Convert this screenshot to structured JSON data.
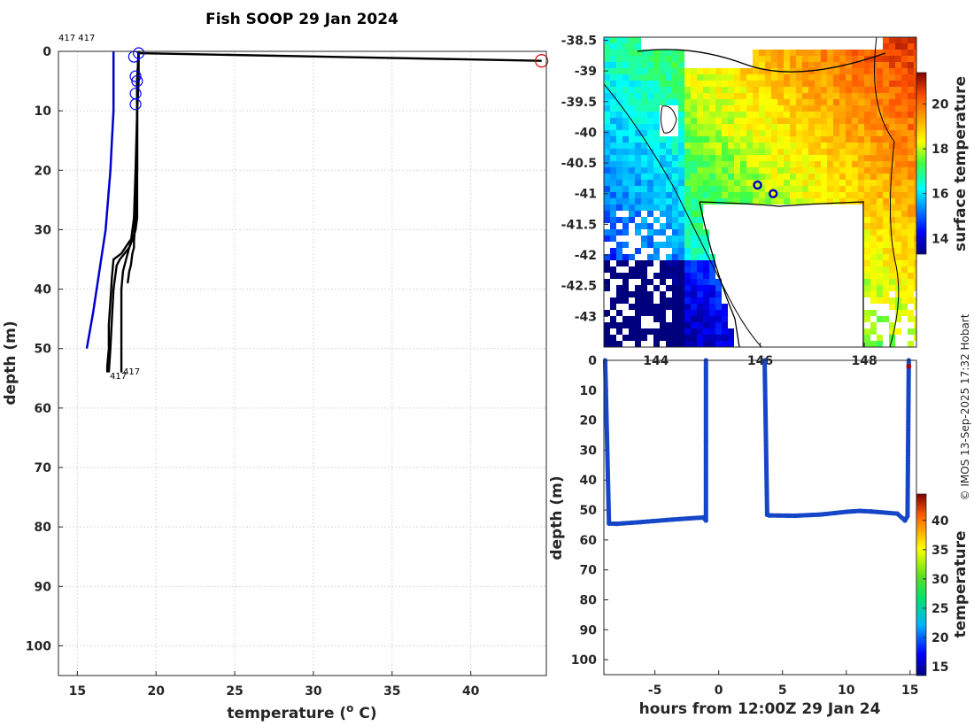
{
  "title": "Fish SOOP 29 Jan 2024",
  "credit": "© IMOS 13-Sep-2025 17:32 Hobart",
  "colors": {
    "profile": "#000000",
    "climatology": "#0000cc",
    "marker": "#0000ff",
    "surface_marker": "#e00000"
  },
  "chart_data": [
    {
      "type": "line",
      "panel": "profiles",
      "xlabel": "temperature (o C)",
      "xlabel_prefix": "temperature (",
      "xlabel_sup": "o",
      "xlabel_suffix": " C)",
      "ylabel": "depth (m)",
      "xlim": [
        13.8,
        44.8
      ],
      "ylim": [
        0,
        105
      ],
      "y_reversed": true,
      "xticks": [
        15,
        20,
        25,
        30,
        35,
        40
      ],
      "yticks": [
        0,
        10,
        20,
        30,
        40,
        50,
        60,
        70,
        80,
        90,
        100
      ],
      "grid": true,
      "annotations": [
        "417 417",
        "417",
        "417"
      ],
      "series": [
        {
          "x": [
            18.9,
            18.8,
            18.8,
            18.8,
            18.8,
            18.7,
            18.6,
            18.3,
            17.8,
            17.3,
            17.2,
            17.1,
            17.0,
            17.0,
            16.9,
            16.9
          ],
          "y": [
            0,
            5,
            10,
            20,
            28,
            30,
            31,
            32,
            34,
            35,
            38,
            42,
            46,
            50,
            53,
            54
          ]
        },
        {
          "x": [
            18.9,
            18.8,
            18.8,
            18.8,
            18.7,
            18.6,
            18.3,
            18.0,
            17.7,
            17.5,
            17.3,
            17.2,
            17.1,
            17.0
          ],
          "y": [
            0,
            5,
            10,
            20,
            28,
            31,
            33,
            34,
            35,
            36,
            40,
            45,
            50,
            54
          ]
        },
        {
          "x": [
            18.9,
            18.8,
            18.8,
            18.7,
            18.6,
            18.4,
            18.1,
            17.9,
            17.8,
            17.8,
            17.8
          ],
          "y": [
            0,
            5,
            10,
            20,
            28,
            32,
            35,
            37,
            40,
            48,
            54
          ]
        },
        {
          "x": [
            18.9,
            18.9,
            18.8,
            18.8,
            18.7,
            18.6,
            18.6,
            18.5,
            18.4,
            18.3,
            18.2
          ],
          "y": [
            0,
            5,
            10,
            20,
            28,
            32,
            33,
            34,
            36,
            37,
            39
          ]
        }
      ],
      "surface_segment": {
        "x": [
          18.8,
          44.5
        ],
        "y": [
          0.3,
          1.6
        ]
      },
      "climatology": {
        "x": [
          17.3,
          17.3,
          17.2,
          17.1,
          16.8,
          16.4,
          16.0,
          15.6
        ],
        "y": [
          0,
          10,
          15,
          20,
          30,
          37,
          44,
          50
        ]
      },
      "blue_markers": [
        {
          "x": 18.9,
          "y": 0.3
        },
        {
          "x": 18.6,
          "y": 0.9
        },
        {
          "x": 18.7,
          "y": 4.2
        },
        {
          "x": 18.8,
          "y": 5.0
        },
        {
          "x": 18.7,
          "y": 7.1
        },
        {
          "x": 18.7,
          "y": 8.9
        }
      ],
      "red_markers": [
        {
          "x": 44.5,
          "y": 1.6
        }
      ]
    },
    {
      "type": "heatmap",
      "panel": "sst-map",
      "lon_ticks": [
        144,
        146,
        148
      ],
      "lat_ticks": [
        -38.5,
        -39,
        -39.5,
        -40,
        -40.5,
        -41,
        -41.5,
        -42,
        -42.5,
        -43
      ],
      "xlim": [
        143.0,
        149.0
      ],
      "ylim": [
        -43.5,
        -38.45
      ],
      "colorbar": {
        "label": "surface temperature",
        "ticks": [
          14,
          16,
          18,
          20
        ],
        "range": [
          13.3,
          21.4
        ]
      },
      "vessel_positions": [
        {
          "lon": 145.95,
          "lat": -40.86
        },
        {
          "lon": 146.25,
          "lat": -41.0
        }
      ]
    },
    {
      "type": "scatter",
      "panel": "depth-time",
      "xlabel": "hours from 12:00Z 29 Jan 24",
      "ylabel": "depth (m)",
      "xlim": [
        -9.0,
        15.5
      ],
      "ylim": [
        0,
        105
      ],
      "y_reversed": true,
      "xticks": [
        -5,
        0,
        5,
        10,
        15
      ],
      "yticks": [
        0,
        10,
        20,
        30,
        40,
        50,
        60,
        70,
        80,
        90,
        100
      ],
      "colorbar": {
        "label": "temperature",
        "ticks": [
          15,
          20,
          25,
          30,
          35,
          40
        ],
        "range": [
          13.5,
          44.5
        ]
      },
      "segments": [
        {
          "x": [
            -8.9,
            -8.6,
            -8.0,
            -6.0,
            -4.0,
            -2.0,
            -1.2,
            -1.0,
            -1.0
          ],
          "y": [
            0,
            54.5,
            54.6,
            54.0,
            53.3,
            52.7,
            52.5,
            53.5,
            0
          ]
        },
        {
          "x": [
            3.6,
            3.8,
            4.0,
            6.0,
            8.0,
            10.0,
            11.0,
            12.0,
            14.0,
            14.6,
            14.8,
            14.9
          ],
          "y": [
            0,
            51.6,
            51.8,
            51.9,
            51.5,
            50.6,
            50.3,
            50.5,
            51.2,
            53.5,
            52.0,
            0
          ]
        }
      ],
      "hot_point": {
        "x": 14.9,
        "y": 2.0
      }
    }
  ]
}
